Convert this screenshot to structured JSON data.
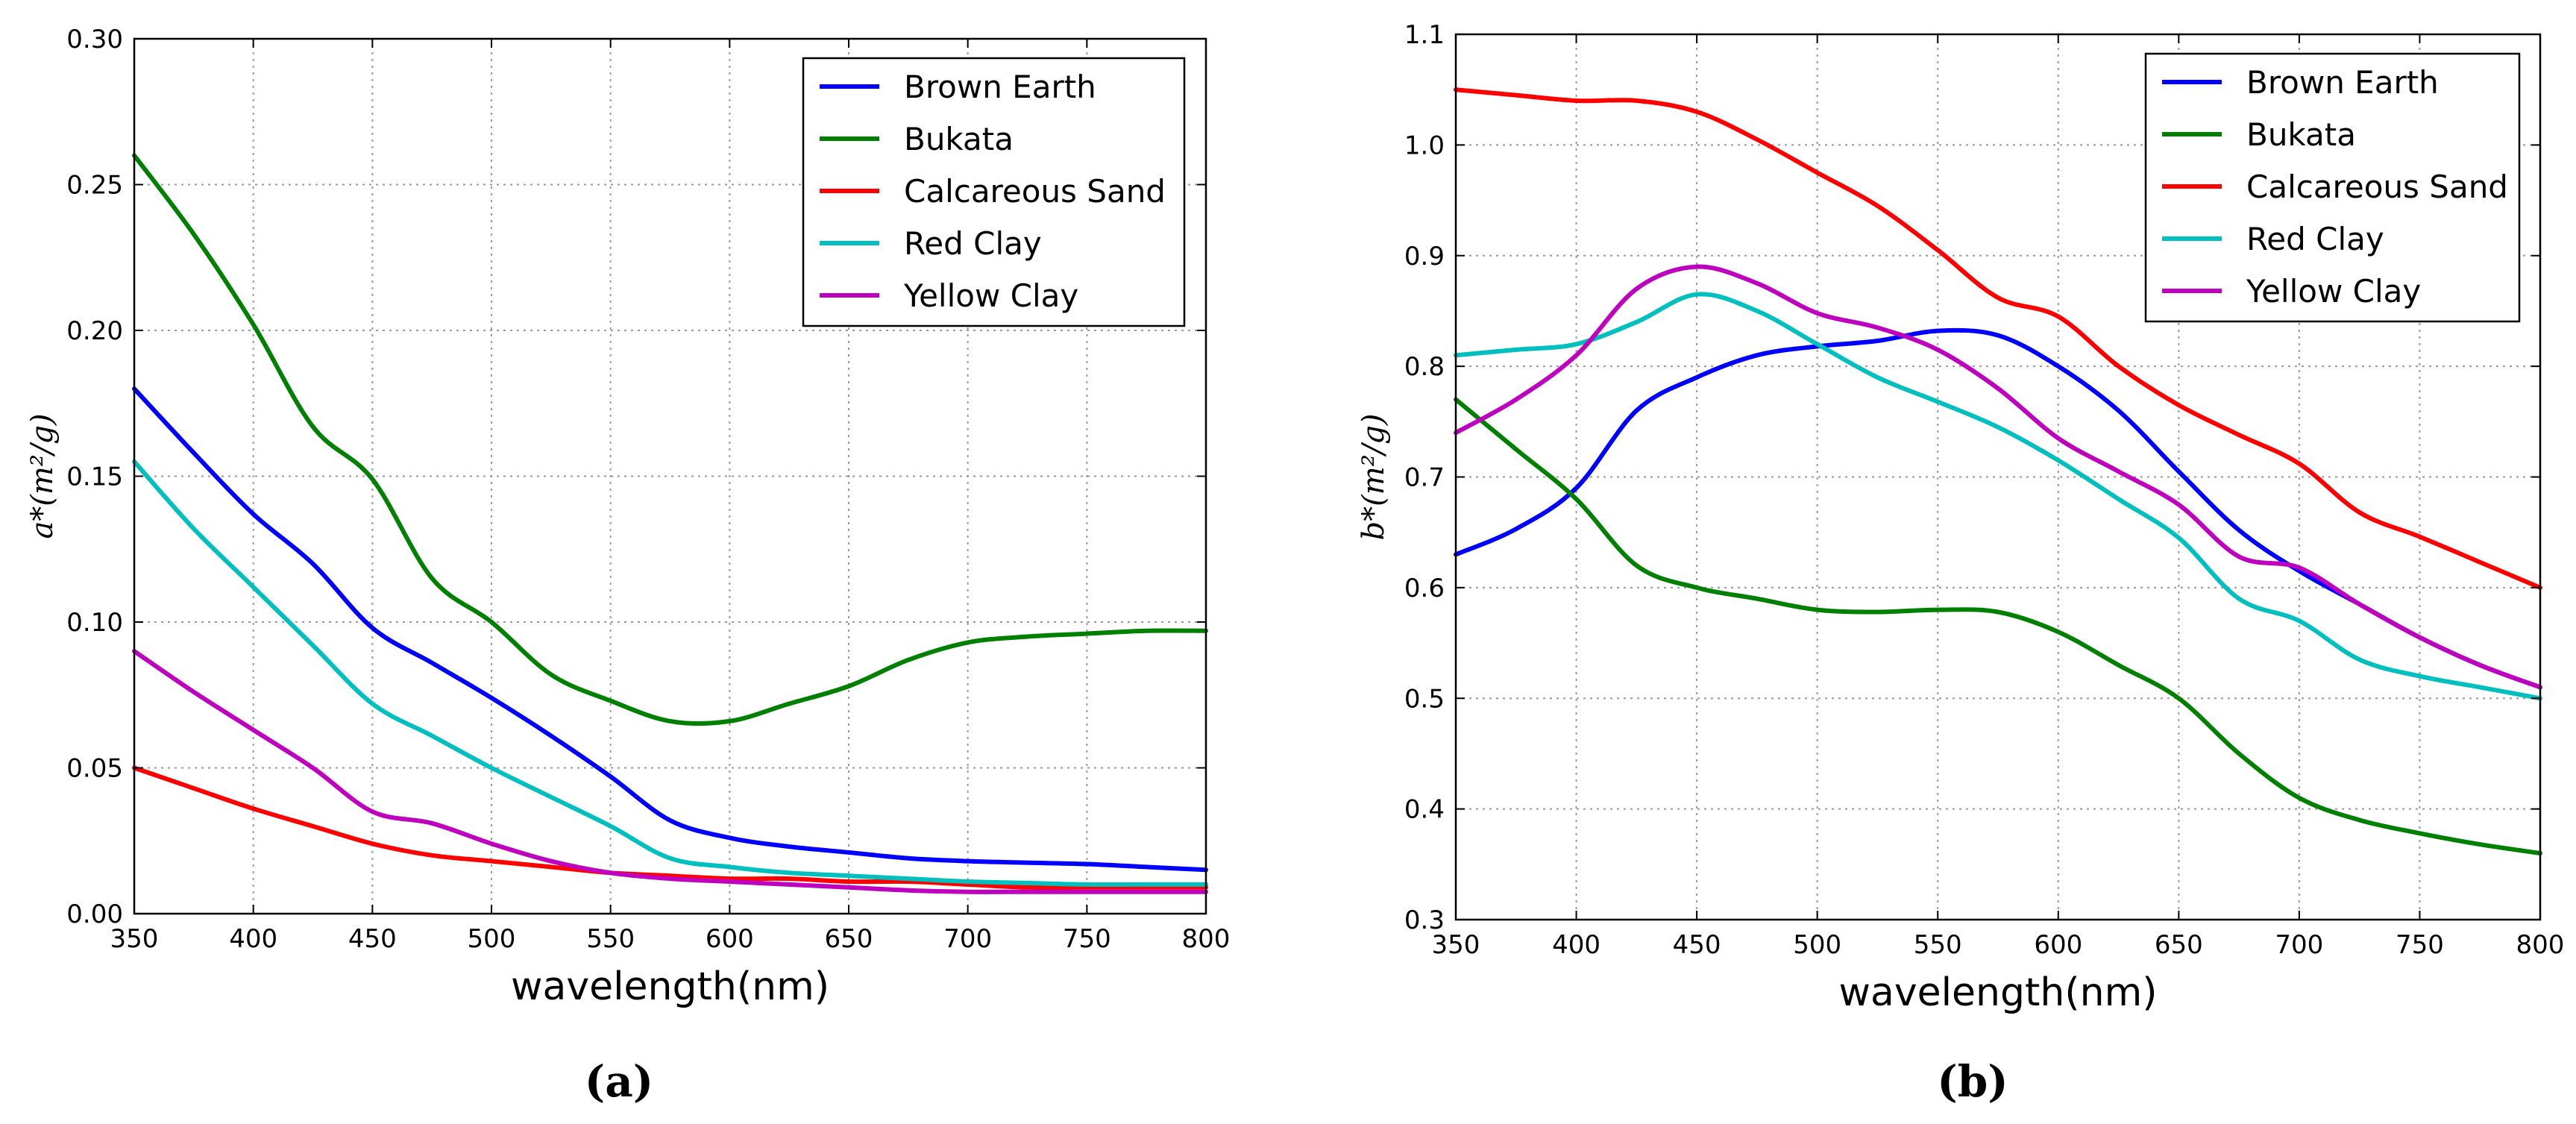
{
  "chart_data": [
    {
      "type": "line",
      "caption": "(a)",
      "xlabel": "wavelength(nm)",
      "ylabel": "a*(m²/g)",
      "xlim": [
        350,
        800
      ],
      "ylim": [
        0,
        0.3
      ],
      "xticks": [
        350,
        400,
        450,
        500,
        550,
        600,
        650,
        700,
        750,
        800
      ],
      "yticks": [
        0.0,
        0.05,
        0.1,
        0.15,
        0.2,
        0.25,
        0.3
      ],
      "ytick_labels": [
        "0.00",
        "0.05",
        "0.10",
        "0.15",
        "0.20",
        "0.25",
        "0.30"
      ],
      "grid": true,
      "legend_position": "top-right",
      "x": [
        350,
        375,
        400,
        425,
        450,
        475,
        500,
        525,
        550,
        575,
        600,
        625,
        650,
        675,
        700,
        725,
        750,
        775,
        800
      ],
      "series": [
        {
          "name": "Brown Earth",
          "color": "#0000ff",
          "values": [
            0.18,
            0.158,
            0.137,
            0.12,
            0.098,
            0.086,
            0.074,
            0.061,
            0.047,
            0.032,
            0.026,
            0.023,
            0.021,
            0.019,
            0.018,
            0.0175,
            0.017,
            0.016,
            0.015
          ]
        },
        {
          "name": "Bukata",
          "color": "#008000",
          "values": [
            0.26,
            0.233,
            0.202,
            0.167,
            0.149,
            0.115,
            0.1,
            0.082,
            0.073,
            0.066,
            0.066,
            0.072,
            0.078,
            0.087,
            0.093,
            0.095,
            0.096,
            0.097,
            0.097
          ]
        },
        {
          "name": "Calcareous Sand",
          "color": "#ff0000",
          "values": [
            0.05,
            0.043,
            0.036,
            0.03,
            0.024,
            0.02,
            0.018,
            0.016,
            0.014,
            0.013,
            0.012,
            0.012,
            0.011,
            0.011,
            0.01,
            0.009,
            0.009,
            0.009,
            0.009
          ]
        },
        {
          "name": "Red Clay",
          "color": "#00bfbf",
          "values": [
            0.155,
            0.132,
            0.112,
            0.092,
            0.072,
            0.061,
            0.05,
            0.04,
            0.03,
            0.019,
            0.016,
            0.014,
            0.013,
            0.012,
            0.011,
            0.0105,
            0.01,
            0.01,
            0.01
          ]
        },
        {
          "name": "Yellow Clay",
          "color": "#bf00bf",
          "values": [
            0.09,
            0.076,
            0.063,
            0.05,
            0.035,
            0.031,
            0.024,
            0.018,
            0.014,
            0.012,
            0.011,
            0.01,
            0.009,
            0.008,
            0.0075,
            0.0075,
            0.0075,
            0.0075,
            0.0075
          ]
        }
      ]
    },
    {
      "type": "line",
      "caption": "(b)",
      "xlabel": "wavelength(nm)",
      "ylabel": "b*(m²/g)",
      "xlim": [
        350,
        800
      ],
      "ylim": [
        0.3,
        1.1
      ],
      "xticks": [
        350,
        400,
        450,
        500,
        550,
        600,
        650,
        700,
        750,
        800
      ],
      "yticks": [
        0.3,
        0.4,
        0.5,
        0.6,
        0.7,
        0.8,
        0.9,
        1.0,
        1.1
      ],
      "ytick_labels": [
        "0.3",
        "0.4",
        "0.5",
        "0.6",
        "0.7",
        "0.8",
        "0.9",
        "1.0",
        "1.1"
      ],
      "grid": true,
      "legend_position": "top-right",
      "x": [
        350,
        375,
        400,
        425,
        450,
        475,
        500,
        525,
        550,
        575,
        600,
        625,
        650,
        675,
        700,
        725,
        750,
        775,
        800
      ],
      "series": [
        {
          "name": "Brown Earth",
          "color": "#0000ff",
          "values": [
            0.63,
            0.653,
            0.69,
            0.76,
            0.79,
            0.81,
            0.818,
            0.823,
            0.832,
            0.828,
            0.8,
            0.76,
            0.705,
            0.652,
            0.615,
            0.585,
            0.555,
            0.53,
            0.51
          ]
        },
        {
          "name": "Bukata",
          "color": "#008000",
          "values": [
            0.77,
            0.725,
            0.68,
            0.62,
            0.6,
            0.59,
            0.58,
            0.578,
            0.58,
            0.578,
            0.56,
            0.53,
            0.5,
            0.45,
            0.41,
            0.39,
            0.378,
            0.368,
            0.36
          ]
        },
        {
          "name": "Calcareous Sand",
          "color": "#ff0000",
          "values": [
            1.05,
            1.045,
            1.04,
            1.04,
            1.03,
            1.005,
            0.975,
            0.945,
            0.905,
            0.862,
            0.845,
            0.8,
            0.765,
            0.738,
            0.712,
            0.668,
            0.646,
            0.623,
            0.6
          ]
        },
        {
          "name": "Red Clay",
          "color": "#00bfbf",
          "values": [
            0.81,
            0.815,
            0.82,
            0.84,
            0.865,
            0.85,
            0.82,
            0.79,
            0.768,
            0.745,
            0.715,
            0.68,
            0.645,
            0.59,
            0.57,
            0.535,
            0.52,
            0.51,
            0.5
          ]
        },
        {
          "name": "Yellow Clay",
          "color": "#bf00bf",
          "values": [
            0.74,
            0.77,
            0.81,
            0.87,
            0.89,
            0.875,
            0.848,
            0.835,
            0.815,
            0.78,
            0.735,
            0.705,
            0.675,
            0.628,
            0.618,
            0.585,
            0.555,
            0.53,
            0.51
          ]
        }
      ]
    }
  ]
}
